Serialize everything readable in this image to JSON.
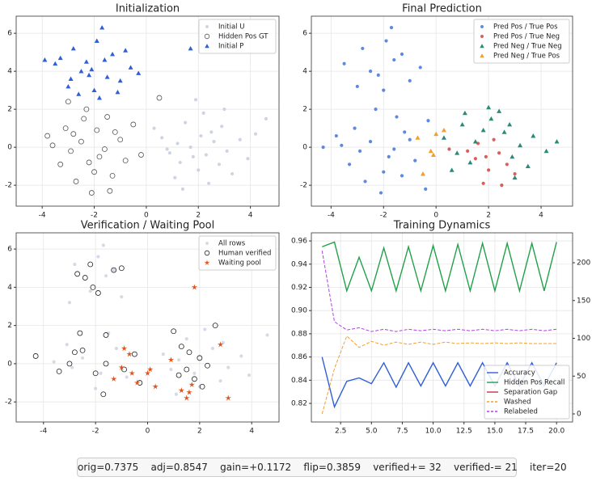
{
  "chart_data": [
    {
      "type": "scatter",
      "title": "Initialization",
      "legend": "upper right",
      "xlim": [
        -5,
        5.1
      ],
      "ylim": [
        -3.1,
        6.9
      ],
      "xticks": [
        -4,
        -2,
        0,
        2,
        4
      ],
      "yticks": [
        -2,
        0,
        2,
        4,
        6
      ],
      "grid": true,
      "series": [
        {
          "name": "Initial U",
          "color": "#c8d0e0",
          "marker": "dot",
          "x": [
            1.2,
            1.8,
            2.5,
            3.1,
            0.6,
            2.0,
            1.5,
            2.8,
            3.6,
            0.9,
            2.2,
            1.1,
            2.9,
            3.9,
            1.7,
            2.4,
            0.3,
            4.2,
            1.3,
            2.6,
            3.3,
            1.9,
            0.8,
            2.1,
            4.6,
            1.4,
            3.0,
            2.3
          ],
          "values": [
            0.2,
            -0.5,
            0.8,
            -0.2,
            0.5,
            -1.2,
            1.3,
            -0.9,
            0.4,
            -0.3,
            1.8,
            -1.6,
            1.1,
            -0.6,
            0.0,
            -1.9,
            1.0,
            0.7,
            -0.8,
            0.3,
            -1.4,
            2.5,
            -0.1,
            0.6,
            1.5,
            -2.2,
            2.0,
            -0.4
          ]
        },
        {
          "name": "Hidden Pos GT",
          "color": "#555555",
          "marker": "circle",
          "x": [
            -2.5,
            -1.8,
            -3.1,
            -1.2,
            -2.0,
            -2.9,
            -1.5,
            -3.6,
            -0.8,
            -2.3,
            -1.0,
            -2.7,
            -3.3,
            -1.6,
            -0.5,
            -2.1,
            -1.3,
            -3.8,
            -2.4,
            -0.2,
            -1.9,
            -2.8,
            0.5,
            -1.4,
            -3.0,
            -2.2
          ],
          "values": [
            0.3,
            -0.5,
            1.0,
            0.8,
            -1.3,
            -0.2,
            1.6,
            0.1,
            -0.7,
            2.0,
            0.4,
            -1.8,
            -0.9,
            -0.1,
            1.2,
            -2.4,
            -1.5,
            0.6,
            1.5,
            -0.4,
            0.9,
            0.7,
            2.6,
            -2.3,
            2.4,
            -0.8
          ]
        },
        {
          "name": "Initial P",
          "color": "#2f5fd8",
          "marker": "triangle",
          "x": [
            -3.5,
            -2.8,
            -2.2,
            -1.6,
            -1.0,
            -2.5,
            -1.9,
            -3.0,
            -1.3,
            -0.6,
            -2.0,
            -2.6,
            -1.7,
            -3.3,
            -0.8,
            -2.3,
            -1.5,
            -2.9,
            -1.1,
            -2.1,
            -0.3,
            -3.9,
            1.7,
            -1.8
          ],
          "values": [
            4.4,
            5.2,
            3.8,
            4.6,
            3.5,
            4.0,
            5.6,
            3.2,
            4.9,
            4.2,
            3.0,
            2.8,
            6.3,
            4.7,
            5.1,
            4.5,
            3.7,
            3.6,
            2.9,
            4.1,
            3.9,
            4.6,
            5.2,
            2.6
          ]
        }
      ]
    },
    {
      "type": "scatter",
      "title": "Final Prediction",
      "legend": "upper right",
      "xlim": [
        -4.75,
        5.2
      ],
      "ylim": [
        -3.1,
        6.9
      ],
      "xticks": [
        -4,
        -2,
        0,
        2,
        4
      ],
      "yticks": [
        -2,
        0,
        2,
        4,
        6
      ],
      "grid": true,
      "series": [
        {
          "name": "Pred Pos / True Pos",
          "color": "#4a7de0",
          "marker": "dot",
          "x": [
            -2.5,
            -1.8,
            -3.1,
            -1.2,
            -2.0,
            -2.9,
            -1.5,
            -3.6,
            -0.8,
            -2.3,
            -1.0,
            -2.7,
            -3.3,
            -1.6,
            -2.1,
            -1.3,
            -3.8,
            -0.4,
            -3.5,
            -2.8,
            -2.2,
            -1.6,
            -1.0,
            -2.5,
            -1.9,
            -3.0,
            -1.3,
            -0.6,
            -2.0,
            -1.7,
            -4.3,
            -0.3
          ],
          "values": [
            0.3,
            -0.5,
            1.0,
            0.8,
            -1.3,
            -0.2,
            1.6,
            0.1,
            -0.7,
            2.0,
            0.4,
            -1.8,
            -0.9,
            -0.1,
            -2.4,
            -1.5,
            0.6,
            -2.2,
            4.4,
            5.2,
            3.8,
            4.6,
            3.5,
            4.0,
            5.6,
            3.2,
            4.9,
            4.2,
            3.0,
            6.3,
            0.0,
            1.4
          ]
        },
        {
          "name": "Pred Pos / True Neg",
          "color": "#d94a4a",
          "marker": "dot",
          "x": [
            1.5,
            2.0,
            2.4,
            1.8,
            2.7,
            1.2,
            2.2,
            3.0,
            1.6,
            2.5,
            1.9,
            0.5
          ],
          "values": [
            -0.6,
            -1.2,
            -0.3,
            -1.9,
            -0.9,
            -0.2,
            0.4,
            -1.4,
            0.2,
            -2.0,
            -0.5,
            -0.1
          ]
        },
        {
          "name": "Pred Neg / True Neg",
          "color": "#2a8a78",
          "marker": "triangle",
          "x": [
            0.3,
            1.0,
            1.5,
            2.1,
            2.6,
            3.2,
            3.7,
            1.3,
            2.4,
            2.9,
            0.8,
            1.8,
            3.5,
            4.2,
            2.0,
            1.1,
            2.8,
            3.0,
            4.6,
            0.6
          ],
          "values": [
            0.5,
            1.2,
            0.3,
            1.5,
            0.8,
            0.1,
            0.6,
            -0.8,
            1.9,
            -0.5,
            -0.3,
            0.9,
            -1.0,
            -0.2,
            2.1,
            1.8,
            1.2,
            -1.6,
            0.3,
            -1.2
          ]
        },
        {
          "name": "Pred Neg / True Pos",
          "color": "#f0a030",
          "marker": "triangle",
          "x": [
            -0.7,
            -0.2,
            0.0,
            -0.5,
            0.3,
            -0.1
          ],
          "values": [
            0.5,
            -0.2,
            0.7,
            -1.4,
            0.9,
            -0.4
          ]
        }
      ]
    },
    {
      "type": "scatter",
      "title": "Verification / Waiting Pool",
      "legend": "upper right",
      "xlim": [
        -5.05,
        5.05
      ],
      "ylim": [
        -3.05,
        6.85
      ],
      "xticks": [
        -4,
        -2,
        0,
        2,
        4
      ],
      "yticks": [
        -2,
        0,
        2,
        4,
        6
      ],
      "grid": true,
      "series": [
        {
          "name": "All rows",
          "color": "#d0d6e4",
          "marker": "dot",
          "x": [
            1.2,
            1.8,
            2.5,
            3.1,
            0.6,
            2.0,
            1.5,
            2.8,
            3.6,
            0.9,
            2.2,
            1.1,
            2.9,
            3.9,
            -2.5,
            -1.8,
            -3.1,
            -1.2,
            -2.0,
            -2.9,
            -1.5,
            -3.6,
            -0.8,
            -2.8,
            -2.2,
            -1.6,
            -1.0,
            -1.9,
            -3.0,
            -1.3,
            4.6,
            -1.7
          ],
          "values": [
            0.2,
            -0.5,
            0.8,
            -0.2,
            0.5,
            -1.2,
            1.3,
            -0.9,
            0.4,
            -0.3,
            1.8,
            -1.6,
            1.1,
            -0.6,
            0.3,
            -0.5,
            1.0,
            0.8,
            -1.3,
            -0.2,
            1.6,
            0.1,
            -0.7,
            5.2,
            3.8,
            4.6,
            3.5,
            5.6,
            3.2,
            4.9,
            1.5,
            6.2
          ]
        },
        {
          "name": "Human verified",
          "color": "#222222",
          "marker": "circle",
          "x": [
            -4.3,
            -2.7,
            -2.4,
            -2.1,
            -1.3,
            -1.0,
            -1.9,
            -2.2,
            -3.4,
            -0.5,
            -2.6,
            -1.6,
            -0.3,
            -1.7,
            -2.8,
            -0.9,
            1.0,
            1.3,
            1.6,
            2.0,
            2.3,
            1.5,
            2.6,
            1.8,
            1.2,
            -1.6,
            -2.0,
            -3.0,
            2.1,
            -2.5
          ],
          "values": [
            0.4,
            4.7,
            4.5,
            4.0,
            4.9,
            5.0,
            3.7,
            5.2,
            -0.4,
            0.5,
            1.6,
            0.0,
            -1.0,
            -1.6,
            0.6,
            -0.3,
            1.7,
            0.9,
            0.6,
            0.3,
            -0.1,
            -0.3,
            2.0,
            -0.8,
            -0.6,
            1.5,
            -0.5,
            0.0,
            -1.2,
            0.7
          ]
        },
        {
          "name": "Waiting pool",
          "color": "#e0521a",
          "marker": "star",
          "x": [
            -1.3,
            -1.0,
            -0.9,
            -0.6,
            -0.4,
            0.0,
            0.3,
            0.9,
            1.3,
            1.5,
            1.6,
            1.8,
            2.8,
            3.1,
            -0.7,
            0.1,
            1.7
          ],
          "values": [
            -0.8,
            -0.2,
            0.8,
            -0.5,
            -1.0,
            -0.5,
            -1.2,
            0.2,
            -1.4,
            -1.8,
            -1.5,
            4.0,
            1.0,
            -1.8,
            0.5,
            -0.3,
            -1.1
          ]
        }
      ]
    },
    {
      "type": "line",
      "title": "Training Dynamics",
      "legend": "lower right",
      "x": [
        1,
        2,
        3,
        4,
        5,
        6,
        7,
        8,
        9,
        10,
        11,
        12,
        13,
        14,
        15,
        16,
        17,
        18,
        19,
        20
      ],
      "xlim": [
        0.13,
        21.3
      ],
      "ylim": [
        0.804,
        0.967
      ],
      "y2lim": [
        -10.7,
        239.6
      ],
      "grid": true,
      "xticks": [
        {
          "value": 2.5,
          "label": "2.5"
        },
        {
          "value": 5,
          "label": "5.0"
        },
        {
          "value": 7.5,
          "label": "7.5"
        },
        {
          "value": 10,
          "label": "10.0"
        },
        {
          "value": 12.5,
          "label": "12.5"
        },
        {
          "value": 15,
          "label": "15.0"
        },
        {
          "value": 17.5,
          "label": "17.5"
        },
        {
          "value": 20,
          "label": "20.0"
        }
      ],
      "yticks": [
        0.82,
        0.84,
        0.86,
        0.88,
        {
          "value": 0.9,
          "label": "0.90"
        },
        0.92,
        0.94,
        0.96
      ],
      "y2ticks": [
        0,
        50,
        100,
        150,
        200
      ],
      "series": [
        {
          "name": "Accuracy",
          "color": "#2f5fd8",
          "dashed": false,
          "values": [
            0.86,
            0.817,
            0.839,
            0.842,
            0.837,
            0.855,
            0.834,
            0.855,
            0.835,
            0.855,
            0.835,
            0.855,
            0.835,
            0.855,
            0.835,
            0.855,
            0.835,
            0.855,
            0.835,
            0.855
          ]
        },
        {
          "name": "Hidden Pos Recall",
          "color": "#22a04a",
          "dashed": false,
          "values": [
            0.955,
            0.959,
            0.917,
            0.946,
            0.917,
            0.954,
            0.917,
            0.955,
            0.917,
            0.956,
            0.917,
            0.957,
            0.917,
            0.958,
            0.917,
            0.958,
            0.917,
            0.958,
            0.917,
            0.959
          ]
        },
        {
          "name": "Separation Gap",
          "color": "#c8304a",
          "dashed": false,
          "values": [
            0.955,
            null,
            null,
            null,
            null,
            null,
            null,
            null,
            null,
            null,
            null,
            null,
            null,
            null,
            null,
            null,
            null,
            null,
            null,
            null
          ]
        },
        {
          "name": "Washed",
          "color": "#f0a030",
          "dashed": true,
          "axis": "y2",
          "values": [
            0,
            60,
            103,
            88,
            96,
            91,
            95,
            92,
            95,
            92,
            95,
            93,
            94,
            93,
            94,
            93,
            94,
            93,
            93,
            93
          ]
        },
        {
          "name": "Relabeled",
          "color": "#b040e0",
          "dashed": true,
          "axis": "y2",
          "values": [
            216,
            122,
            111,
            114,
            109,
            112,
            109,
            112,
            110,
            112,
            110,
            112,
            110,
            112,
            110,
            112,
            110,
            112,
            110,
            112
          ]
        }
      ]
    }
  ],
  "status": "orig=0.7375    adj=0.8547    gain=+0.1172    flip=0.3859    verified+= 32    verified-= 21    iter=20"
}
